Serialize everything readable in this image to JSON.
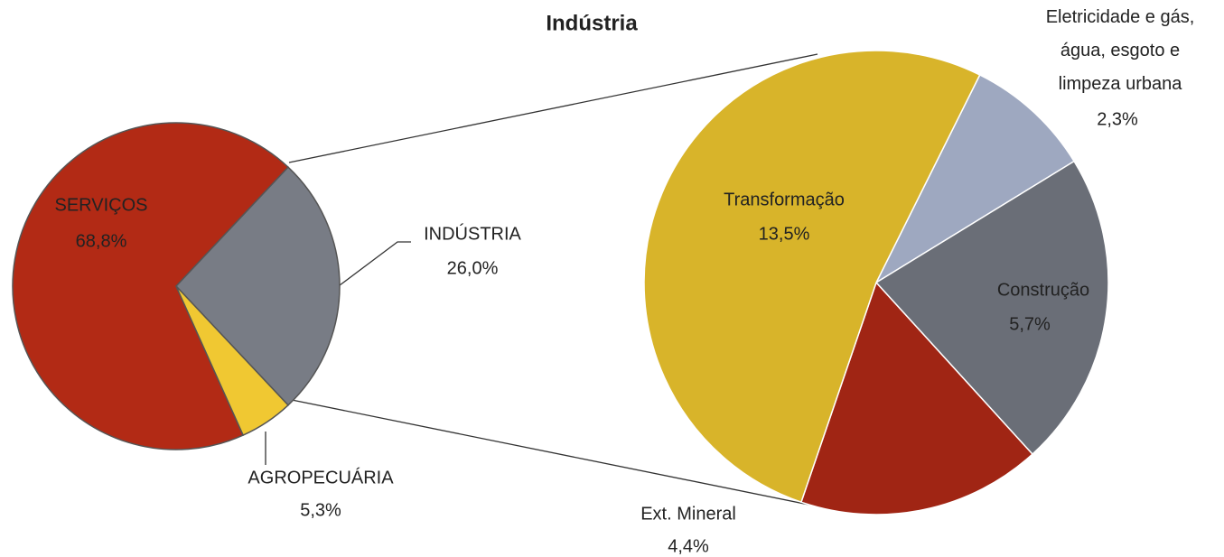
{
  "chart_data": [
    {
      "type": "pie",
      "categories": [
        "SERVIÇOS",
        "INDÚSTRIA",
        "AGROPECUÁRIA"
      ],
      "values": [
        68.8,
        26.0,
        5.3
      ],
      "value_labels": [
        "68,8%",
        "26,0%",
        "5,3%"
      ],
      "colors": [
        "#b22a15",
        "#787c85",
        "#f0c832"
      ]
    },
    {
      "type": "pie",
      "title": "Indústria",
      "categories": [
        "Eletricidade e gás, água, esgoto e limpeza urbana",
        "Construção",
        "Ext. Mineral",
        "Transformação"
      ],
      "values": [
        2.3,
        5.7,
        4.4,
        13.5
      ],
      "value_labels": [
        "2,3%",
        "5,7%",
        "4,4%",
        "13,5%"
      ],
      "colors": [
        "#9ea8c0",
        "#6a6e77",
        "#a02514",
        "#d8b42a"
      ]
    }
  ]
}
